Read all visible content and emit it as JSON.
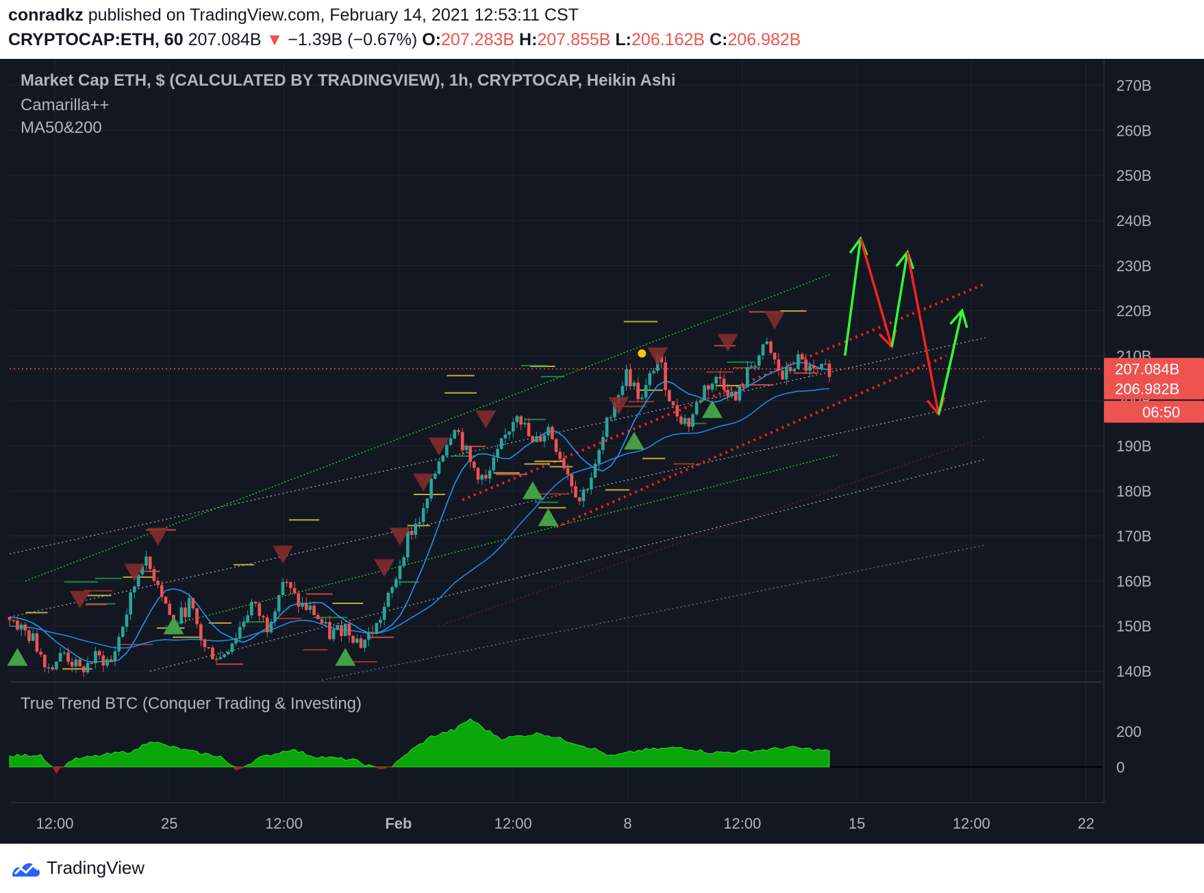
{
  "header": {
    "author": "conradkz",
    "published_text": "published on TradingView.com, February 14, 2021 12:53:11 CST",
    "symbol": "CRYPTOCAP:ETH, 60",
    "last": "207.084B",
    "change": "−1.39B (−0.67%)",
    "o_label": "O:",
    "o_value": "207.283B",
    "h_label": "H:",
    "h_value": "207.855B",
    "l_label": "L:",
    "l_value": "206.162B",
    "c_label": "C:",
    "c_value": "206.982B"
  },
  "legend": {
    "title": "Market Cap ETH, $ (CALCULATED BY TRADINGVIEW), 1h, CRYPTOCAP, Heikin Ashi",
    "ind1": "Camarilla++",
    "ind2": "MA50&200",
    "osc": "True Trend BTC (Conquer Trading & Investing)"
  },
  "price_badges": {
    "last": "207.084B",
    "close": "206.982B",
    "timer": "06:50"
  },
  "footer": {
    "brand": "TradingView"
  },
  "colors": {
    "background": "#131722",
    "up": "#26a69a",
    "down": "#ef5350",
    "ma_fast": "#2196f3",
    "ma_slow": "#1e88e5",
    "osc_fill": "#0aa60a",
    "arrow_up": "#33ff33",
    "arrow_down": "#ff2020"
  },
  "chart_data": {
    "type": "candlestick",
    "y_axis": {
      "ticks": [
        140,
        150,
        160,
        170,
        180,
        190,
        200,
        210,
        220,
        230,
        240,
        250,
        260,
        270
      ],
      "unit": "B",
      "range": [
        138,
        273
      ]
    },
    "x_axis": {
      "ticks": [
        "12:00",
        "25",
        "12:00",
        "Feb",
        "12:00",
        "8",
        "12:00",
        "15",
        "12:00",
        "22"
      ]
    },
    "oscillator_axis": {
      "ticks": [
        0,
        200
      ]
    },
    "price_path": [
      [
        0,
        152
      ],
      [
        3,
        147
      ],
      [
        5,
        141
      ],
      [
        7,
        144
      ],
      [
        9,
        140
      ],
      [
        11,
        143
      ],
      [
        13,
        142
      ],
      [
        15,
        153
      ],
      [
        17,
        165
      ],
      [
        19,
        160
      ],
      [
        21,
        150
      ],
      [
        23,
        155
      ],
      [
        25,
        145
      ],
      [
        27,
        143
      ],
      [
        29,
        148
      ],
      [
        31,
        155
      ],
      [
        33,
        150
      ],
      [
        35,
        160
      ],
      [
        37,
        155
      ],
      [
        39,
        153
      ],
      [
        41,
        148
      ],
      [
        43,
        150
      ],
      [
        45,
        146
      ],
      [
        47,
        150
      ],
      [
        49,
        158
      ],
      [
        51,
        170
      ],
      [
        53,
        175
      ],
      [
        55,
        187
      ],
      [
        57,
        195
      ],
      [
        59,
        186
      ],
      [
        61,
        182
      ],
      [
        63,
        190
      ],
      [
        65,
        198
      ],
      [
        67,
        190
      ],
      [
        69,
        194
      ],
      [
        71,
        186
      ],
      [
        73,
        178
      ],
      [
        75,
        185
      ],
      [
        77,
        198
      ],
      [
        79,
        206
      ],
      [
        81,
        200
      ],
      [
        83,
        210
      ],
      [
        85,
        198
      ],
      [
        87,
        195
      ],
      [
        89,
        203
      ],
      [
        91,
        205
      ],
      [
        93,
        200
      ],
      [
        95,
        208
      ],
      [
        97,
        212
      ],
      [
        99,
        205
      ],
      [
        101,
        209
      ],
      [
        103,
        206
      ],
      [
        105,
        207
      ]
    ],
    "oscillator": [
      [
        0,
        60
      ],
      [
        4,
        70
      ],
      [
        6,
        -30
      ],
      [
        8,
        40
      ],
      [
        14,
        80
      ],
      [
        16,
        90
      ],
      [
        18,
        150
      ],
      [
        20,
        120
      ],
      [
        24,
        80
      ],
      [
        27,
        60
      ],
      [
        29,
        -20
      ],
      [
        32,
        50
      ],
      [
        36,
        100
      ],
      [
        39,
        60
      ],
      [
        44,
        40
      ],
      [
        47,
        -10
      ],
      [
        49,
        0
      ],
      [
        51,
        80
      ],
      [
        54,
        170
      ],
      [
        57,
        210
      ],
      [
        59,
        270
      ],
      [
        61,
        210
      ],
      [
        63,
        160
      ],
      [
        68,
        190
      ],
      [
        72,
        140
      ],
      [
        75,
        100
      ],
      [
        77,
        60
      ],
      [
        81,
        95
      ],
      [
        86,
        110
      ],
      [
        90,
        80
      ],
      [
        95,
        90
      ],
      [
        100,
        110
      ],
      [
        105,
        90
      ]
    ],
    "projection": [
      [
        107,
        210
      ],
      [
        109,
        236
      ],
      [
        113,
        212
      ],
      [
        115,
        233
      ],
      [
        119,
        197
      ],
      [
        122,
        220
      ]
    ]
  }
}
